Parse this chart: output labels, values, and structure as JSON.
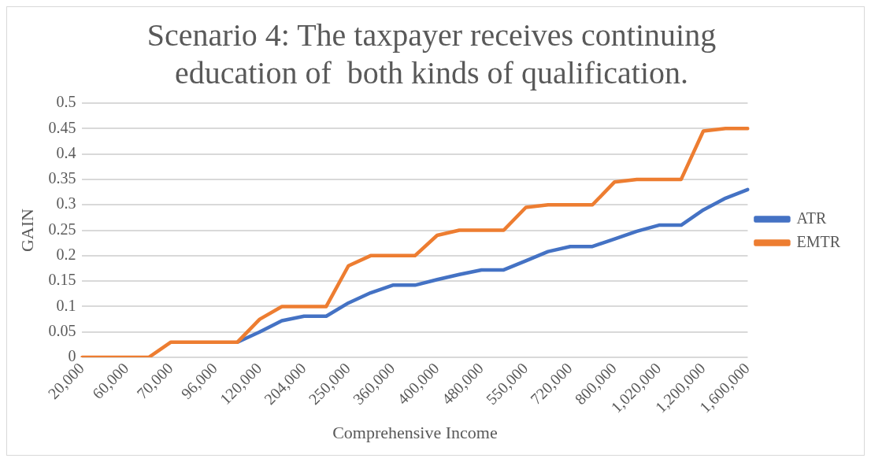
{
  "chart_data": {
    "type": "line",
    "title": "Scenario 4: The taxpayer receives continuing education of  both kinds of qualification.",
    "xlabel": "Comprehensive Income",
    "ylabel": "GAIN",
    "categories": [
      "20,000",
      null,
      "60,000",
      null,
      "70,000",
      null,
      "96,000",
      null,
      "120,000",
      null,
      "204,000",
      null,
      "250,000",
      null,
      "360,000",
      null,
      "400,000",
      null,
      "480,000",
      null,
      "550,000",
      null,
      "720,000",
      null,
      "800,000",
      null,
      "1,020,000",
      null,
      "1,200,000",
      null,
      "1,600,000"
    ],
    "series": [
      {
        "name": "ATR",
        "color": "#4472c4",
        "values": [
          null,
          null,
          null,
          null,
          null,
          null,
          null,
          0.03,
          0.05,
          0.072,
          0.081,
          0.081,
          0.107,
          0.127,
          0.142,
          0.142,
          0.153,
          0.163,
          0.172,
          0.172,
          0.19,
          0.208,
          0.218,
          0.218,
          0.233,
          0.248,
          0.26,
          0.26,
          0.29,
          0.313,
          0.33
        ]
      },
      {
        "name": "EMTR",
        "color": "#ed7d31",
        "values": [
          0,
          0,
          0,
          0,
          0.03,
          0.03,
          0.03,
          0.03,
          0.075,
          0.1,
          0.1,
          0.1,
          0.18,
          0.2,
          0.2,
          0.2,
          0.24,
          0.25,
          0.25,
          0.25,
          0.295,
          0.3,
          0.3,
          0.3,
          0.345,
          0.35,
          0.35,
          0.35,
          0.445,
          0.45,
          0.45
        ]
      }
    ],
    "ylim": [
      0,
      0.5
    ],
    "yticks": [
      0,
      0.05,
      0.1,
      0.15,
      0.2,
      0.25,
      0.3,
      0.35,
      0.4,
      0.45,
      0.5
    ],
    "grid": "y",
    "legend": "right",
    "marker": "none",
    "line_style": "solid"
  }
}
